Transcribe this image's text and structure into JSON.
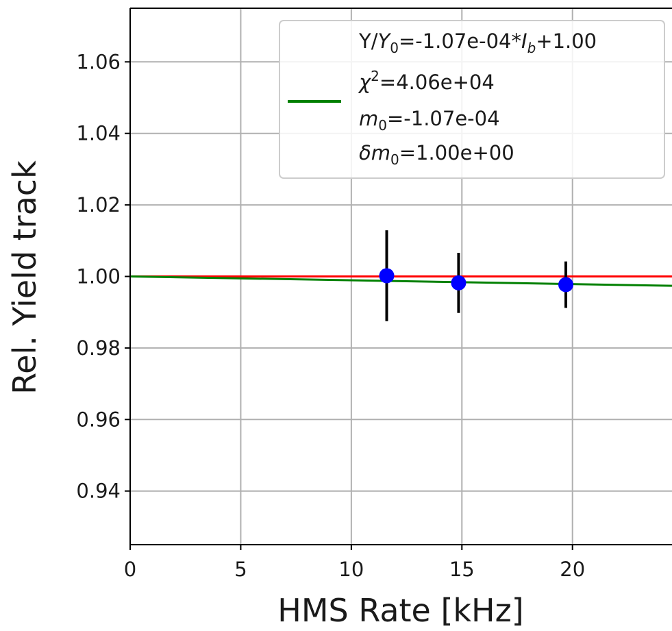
{
  "chart_data": {
    "type": "scatter",
    "title": "",
    "xlabel": "HMS Rate [kHz]",
    "ylabel": "Rel. Yield track",
    "xlim": [
      0,
      24.5
    ],
    "ylim": [
      0.925,
      1.075
    ],
    "xticks": [
      0,
      5,
      10,
      15,
      20
    ],
    "xtick_labels": [
      "0",
      "5",
      "10",
      "15",
      "20"
    ],
    "yticks": [
      0.94,
      0.96,
      0.98,
      1.0,
      1.02,
      1.04,
      1.06
    ],
    "ytick_labels": [
      "0.94",
      "0.96",
      "0.98",
      "1.00",
      "1.02",
      "1.04",
      "1.06"
    ],
    "grid": true,
    "legend_position": "top-right",
    "points": {
      "x": [
        11.6,
        14.85,
        19.7
      ],
      "y": [
        1.0002,
        0.9982,
        0.9977
      ],
      "yerr": [
        0.0127,
        0.0084,
        0.0065
      ],
      "color": "#0000ff",
      "errorbar_color": "#000000"
    },
    "lines": [
      {
        "name": "fit",
        "color": "#008000",
        "slope": -0.000107,
        "intercept": 1.0,
        "legend": {
          "eq_prefix": "Y/",
          "eq_y": "Y",
          "eq_y_sub": "0",
          "eq_mid": "=-1.07e-04*",
          "eq_i": "I",
          "eq_i_sub": "b",
          "eq_suffix": "+1.00",
          "chi_sym": "χ",
          "chi_sup": "2",
          "chi_val": "=4.06e+04",
          "m0_sym": "m",
          "m0_sub": "0",
          "m0_val": "=-1.07e-04",
          "dm0_delta": "δ",
          "dm0_sym": "m",
          "dm0_sub": "0",
          "dm0_val": "=1.00e+00"
        }
      },
      {
        "color": "#ff0000",
        "slope": 0,
        "intercept": 1.0
      }
    ]
  }
}
